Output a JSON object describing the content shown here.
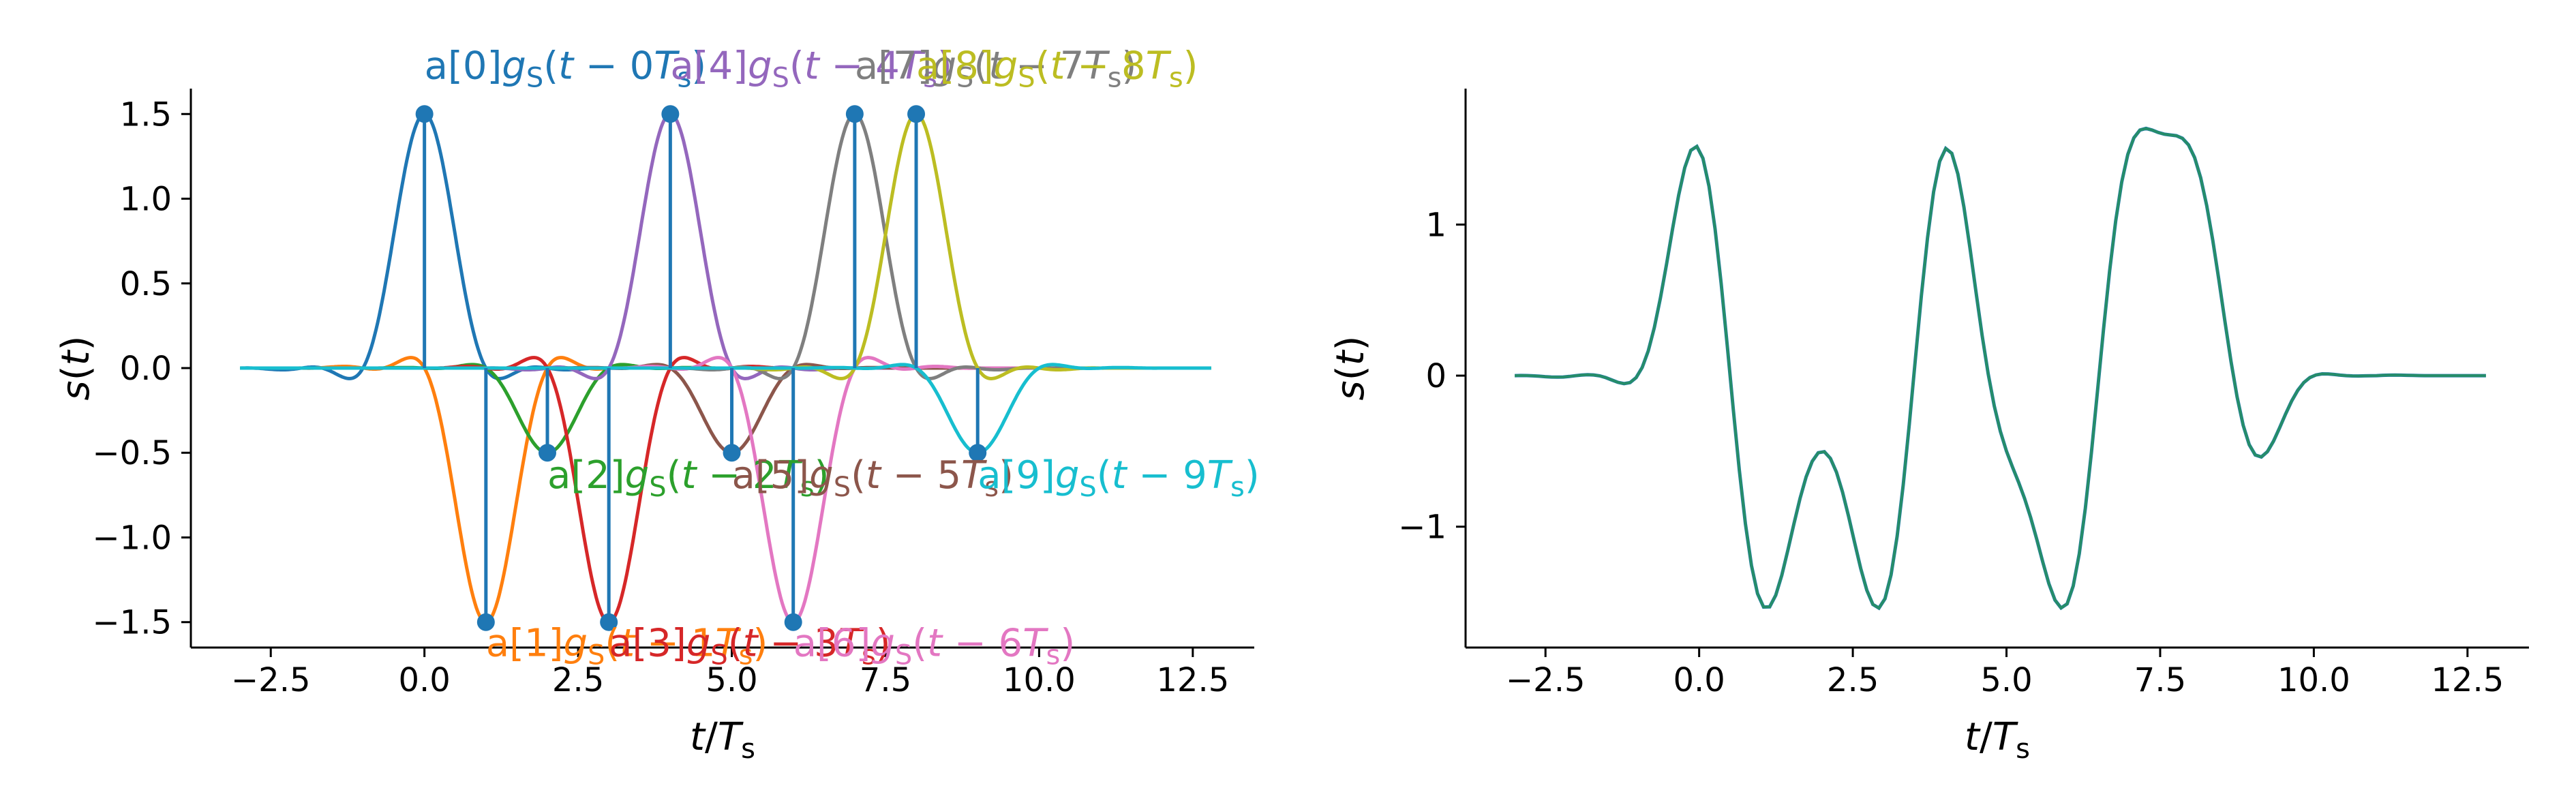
{
  "chart_data": [
    {
      "type": "line",
      "panel": "left",
      "xlabel": "t/T_s",
      "ylabel": "s(t)",
      "xlim": [
        -3.8,
        13.5
      ],
      "ylim": [
        -1.65,
        1.65
      ],
      "xticks": [
        -2.5,
        0.0,
        2.5,
        5.0,
        7.5,
        10.0,
        12.5
      ],
      "xtick_labels": [
        "−2.5",
        "0.0",
        "2.5",
        "5.0",
        "7.5",
        "10.0",
        "12.5"
      ],
      "yticks": [
        1.5,
        1.0,
        0.5,
        0.0,
        -0.5,
        -1.0,
        -1.5
      ],
      "ytick_labels": [
        "1.5",
        "1.0",
        "0.5",
        "0.0",
        "−0.5",
        "−1.0",
        "−1.5"
      ],
      "grid": false,
      "pulse_shape": "raised-cosine style pulse g_S(t - nT_s), support approx ±3T_s",
      "symbols": [
        {
          "n": 0,
          "a": 1.5,
          "color": "#1f77b4"
        },
        {
          "n": 1,
          "a": -1.5,
          "color": "#ff7f0e"
        },
        {
          "n": 2,
          "a": -0.5,
          "color": "#2ca02c"
        },
        {
          "n": 3,
          "a": -1.5,
          "color": "#d62728"
        },
        {
          "n": 4,
          "a": 1.5,
          "color": "#9467bd"
        },
        {
          "n": 5,
          "a": -0.5,
          "color": "#8c564b"
        },
        {
          "n": 6,
          "a": -1.5,
          "color": "#e377c2"
        },
        {
          "n": 7,
          "a": 1.5,
          "color": "#7f7f7f"
        },
        {
          "n": 8,
          "a": 1.5,
          "color": "#bcbd22"
        },
        {
          "n": 9,
          "a": -0.5,
          "color": "#17becf"
        }
      ],
      "stem_color": "#1f77b4",
      "annotations": [
        {
          "n": 0,
          "label": "a[0]g_S(t − 0T_s)"
        },
        {
          "n": 1,
          "label": "a[1]g_S(t − 1T_s)"
        },
        {
          "n": 2,
          "label": "a[2]g_S(t − 2T_s)"
        },
        {
          "n": 3,
          "label": "a[3]g_S(t − 3T_s)"
        },
        {
          "n": 4,
          "label": "a[4]g_S(t − 4T_s)"
        },
        {
          "n": 5,
          "label": "a[5]g_S(t − 5T_s)"
        },
        {
          "n": 6,
          "label": "a[6]g_S(t − 6T_s)"
        },
        {
          "n": 7,
          "label": "a[7]g_S(t − 7T_s)"
        },
        {
          "n": 8,
          "label": "a[8]g_S(t − 8T_s)"
        },
        {
          "n": 9,
          "label": "a[9]g_S(t − 9T_s)"
        }
      ]
    },
    {
      "type": "line",
      "panel": "right",
      "xlabel": "t/T_s",
      "ylabel": "s(t)",
      "xlim": [
        -3.8,
        13.5
      ],
      "ylim": [
        -1.8,
        1.9
      ],
      "xticks": [
        -2.5,
        0.0,
        2.5,
        5.0,
        7.5,
        10.0,
        12.5
      ],
      "xtick_labels": [
        "−2.5",
        "0.0",
        "2.5",
        "5.0",
        "7.5",
        "10.0",
        "12.5"
      ],
      "yticks": [
        1,
        0,
        -1
      ],
      "ytick_labels": [
        "1",
        "0",
        "−1"
      ],
      "grid": false,
      "series_colors": [
        "#1f77b4",
        "#2ca02c"
      ],
      "series": [
        {
          "description": "sum of all pulses s(t)",
          "x_range": [
            -3,
            12.8
          ]
        }
      ]
    }
  ]
}
